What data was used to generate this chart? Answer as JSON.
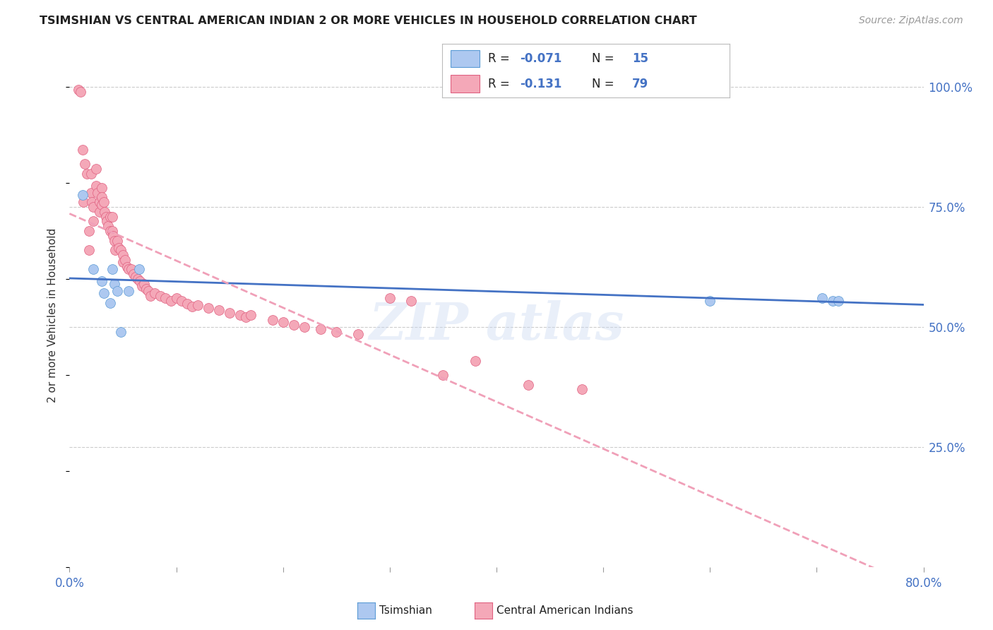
{
  "title": "TSIMSHIAN VS CENTRAL AMERICAN INDIAN 2 OR MORE VEHICLES IN HOUSEHOLD CORRELATION CHART",
  "source": "Source: ZipAtlas.com",
  "ylabel": "2 or more Vehicles in Household",
  "xmin": 0.0,
  "xmax": 0.8,
  "ymin": 0.0,
  "ymax": 1.05,
  "legend_tsimshian_R": "-0.071",
  "legend_tsimshian_N": "15",
  "legend_central_R": "-0.131",
  "legend_central_N": "79",
  "tsimshian_color": "#adc8f0",
  "tsimshian_edge_color": "#5b9bd5",
  "central_color": "#f4a8b8",
  "central_edge_color": "#e06080",
  "tsimshian_line_color": "#4472c4",
  "central_line_color": "#f0a0b8",
  "background_color": "#ffffff",
  "grid_color": "#cccccc",
  "tsimshian_scatter_x": [
    0.012,
    0.022,
    0.03,
    0.032,
    0.038,
    0.04,
    0.042,
    0.045,
    0.048,
    0.055,
    0.065,
    0.6,
    0.705,
    0.715,
    0.72
  ],
  "tsimshian_scatter_y": [
    0.775,
    0.62,
    0.595,
    0.57,
    0.55,
    0.62,
    0.59,
    0.575,
    0.49,
    0.575,
    0.62,
    0.555,
    0.56,
    0.555,
    0.555
  ],
  "central_scatter_x": [
    0.008,
    0.01,
    0.012,
    0.013,
    0.014,
    0.016,
    0.018,
    0.018,
    0.02,
    0.02,
    0.021,
    0.022,
    0.022,
    0.025,
    0.025,
    0.026,
    0.028,
    0.028,
    0.03,
    0.03,
    0.03,
    0.032,
    0.033,
    0.034,
    0.035,
    0.036,
    0.038,
    0.038,
    0.04,
    0.04,
    0.041,
    0.042,
    0.043,
    0.045,
    0.046,
    0.048,
    0.05,
    0.05,
    0.052,
    0.054,
    0.055,
    0.058,
    0.06,
    0.062,
    0.064,
    0.066,
    0.068,
    0.07,
    0.072,
    0.074,
    0.076,
    0.08,
    0.085,
    0.09,
    0.095,
    0.1,
    0.105,
    0.11,
    0.115,
    0.12,
    0.13,
    0.14,
    0.15,
    0.16,
    0.165,
    0.17,
    0.19,
    0.2,
    0.21,
    0.22,
    0.235,
    0.25,
    0.27,
    0.3,
    0.32,
    0.35,
    0.38,
    0.43,
    0.48
  ],
  "central_scatter_y": [
    0.995,
    0.99,
    0.87,
    0.76,
    0.84,
    0.82,
    0.7,
    0.66,
    0.82,
    0.78,
    0.76,
    0.75,
    0.72,
    0.83,
    0.795,
    0.78,
    0.76,
    0.74,
    0.79,
    0.77,
    0.755,
    0.76,
    0.74,
    0.73,
    0.72,
    0.71,
    0.73,
    0.7,
    0.73,
    0.7,
    0.69,
    0.68,
    0.66,
    0.68,
    0.665,
    0.66,
    0.65,
    0.635,
    0.64,
    0.625,
    0.62,
    0.62,
    0.61,
    0.605,
    0.6,
    0.595,
    0.585,
    0.59,
    0.58,
    0.575,
    0.565,
    0.57,
    0.565,
    0.56,
    0.555,
    0.56,
    0.555,
    0.548,
    0.542,
    0.545,
    0.54,
    0.535,
    0.53,
    0.525,
    0.52,
    0.525,
    0.515,
    0.51,
    0.505,
    0.5,
    0.495,
    0.49,
    0.485,
    0.56,
    0.555,
    0.4,
    0.43,
    0.38,
    0.37
  ],
  "watermark_text": "ZIP atlas"
}
